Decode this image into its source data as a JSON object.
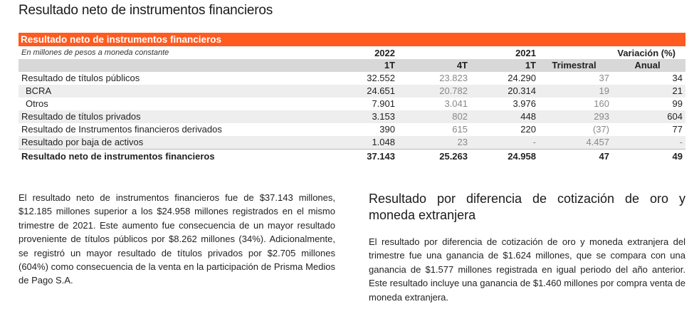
{
  "page_title": "Resultado neto de instrumentos financieros",
  "table": {
    "header_bar": "Resultado neto de instrumentos financieros",
    "units_note": "En millones de pesos a moneda constante",
    "year_2022": "2022",
    "year_2021": "2021",
    "variation_label": "Variación (%)",
    "periods": [
      "1T",
      "4T",
      "1T",
      "Trimestral",
      "Anual"
    ],
    "rows": [
      {
        "label": "Resultado de títulos públicos",
        "values": [
          "32.552",
          "23.823",
          "24.290",
          "37",
          "34"
        ]
      },
      {
        "label": "BCRA",
        "values": [
          "24.651",
          "20.782",
          "20.314",
          "19",
          "21"
        ]
      },
      {
        "label": "Otros",
        "values": [
          "7.901",
          "3.041",
          "3.976",
          "160",
          "99"
        ]
      },
      {
        "label": "Resultado de títulos privados",
        "values": [
          "3.153",
          "802",
          "448",
          "293",
          "604"
        ]
      },
      {
        "label": "Resultado de Instrumentos financieros derivados",
        "values": [
          "390",
          "615",
          "220",
          "(37)",
          "77"
        ]
      },
      {
        "label": "Resultado por baja de activos",
        "values": [
          "1.048",
          "23",
          "-",
          "4.457",
          "-"
        ]
      }
    ],
    "total": {
      "label": "Resultado neto de instrumentos financieros",
      "values": [
        "37.143",
        "25.263",
        "24.958",
        "47",
        "49"
      ]
    }
  },
  "left_paragraph": "El resultado neto de instrumentos financieros fue de $37.143 millones, $12.185 millones superior a los $24.958 millones registrados en el mismo trimestre de 2021. Este aumento fue consecuencia de un mayor resultado proveniente de títulos públicos por $8.262 millones (34%). Adicionalmente, se registró un mayor resultado de títulos privados por $2.705 millones (604%) como consecuencia de la venta en la participación de Prisma Medios de Pago S.A.",
  "right_section": {
    "title": "Resultado por diferencia de cotización de oro y moneda extranjera",
    "paragraph": "El resultado por diferencia de cotización de oro y moneda extranjera del trimestre fue una ganancia de $1.624 millones, que se compara con una ganancia de $1.577 millones registrada en igual periodo del año anterior. Este resultado incluye una ganancia de $1.460 millones por compra venta de moneda extranjera."
  }
}
